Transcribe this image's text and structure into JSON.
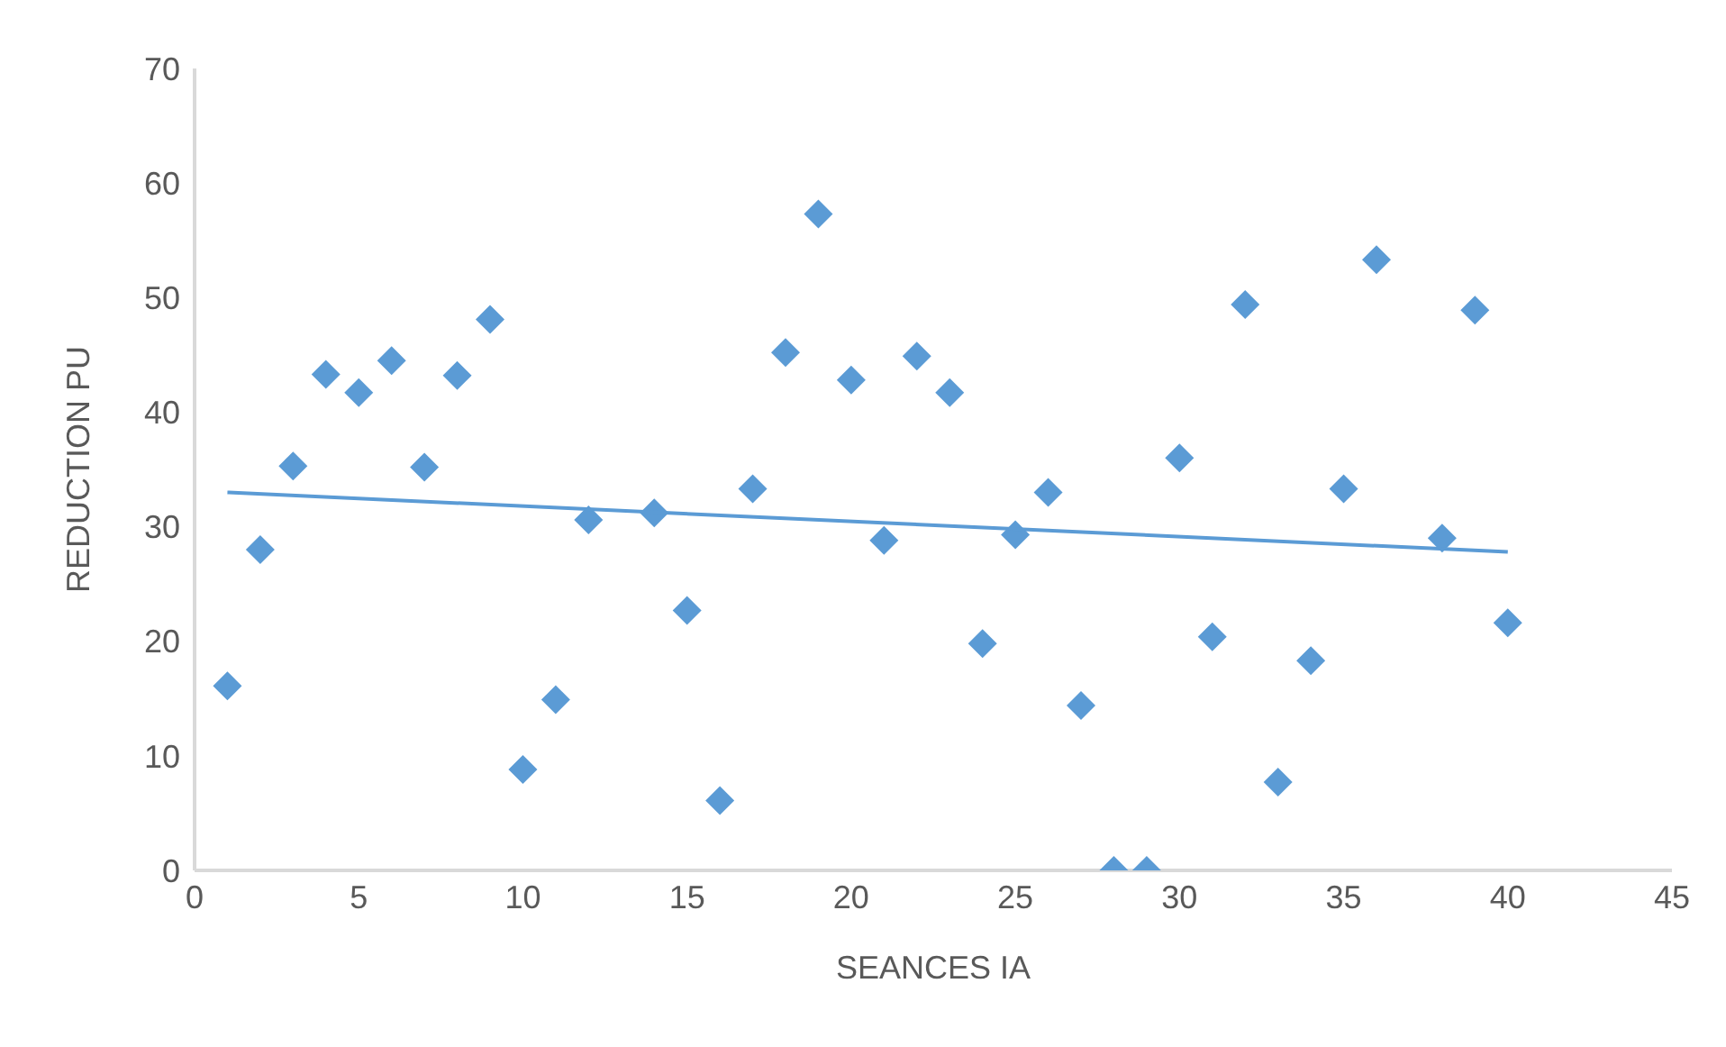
{
  "chart_data": {
    "type": "scatter",
    "xlabel": "SEANCES IA",
    "ylabel": "REDUCTION PU",
    "xlim": [
      0,
      45
    ],
    "xticks": [
      0,
      5,
      10,
      15,
      20,
      25,
      30,
      35,
      40,
      45
    ],
    "ylim": [
      0,
      70
    ],
    "yticks": [
      0,
      10,
      20,
      30,
      40,
      50,
      60,
      70
    ],
    "grid": false,
    "marker": "diamond",
    "series": [
      {
        "color": "#5b9bd5",
        "x": [
          1,
          2,
          3,
          4,
          5,
          6,
          7,
          8,
          9,
          10,
          11,
          12,
          14,
          15,
          16,
          17,
          18,
          19,
          20,
          21,
          22,
          23,
          24,
          25,
          26,
          27,
          28,
          29,
          30,
          31,
          32,
          33,
          34,
          35,
          36,
          38,
          39,
          40
        ],
        "values": [
          16.1,
          28,
          35.3,
          43.3,
          41.7,
          44.5,
          35.2,
          43.2,
          48.1,
          8.8,
          14.9,
          30.6,
          31.2,
          22.7,
          6.1,
          33.3,
          45.2,
          57.3,
          42.8,
          28.8,
          44.9,
          41.7,
          19.8,
          29.3,
          33,
          14.4,
          0,
          0,
          36,
          20.4,
          49.4,
          7.7,
          18.3,
          33.3,
          53.3,
          29,
          48.9,
          21.6
        ]
      },
      {
        "type": "line",
        "marker": "none",
        "color": "#5b9bd5",
        "x": [
          1,
          40
        ],
        "values": [
          33,
          27.8
        ]
      }
    ]
  }
}
